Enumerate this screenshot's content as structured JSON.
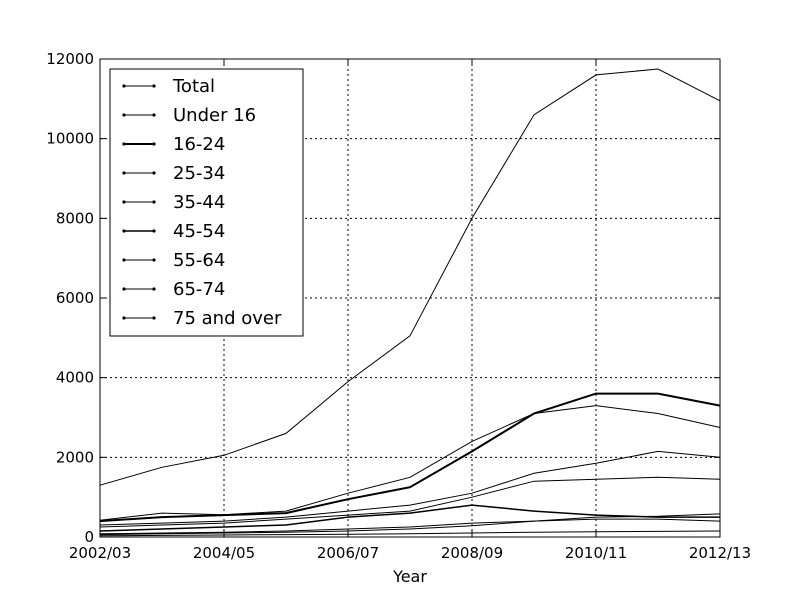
{
  "chart_data": {
    "type": "line",
    "xlabel": "Year",
    "ylabel": "",
    "title": "",
    "x": [
      "2002/03",
      "2003/04",
      "2004/05",
      "2005/06",
      "2006/07",
      "2007/08",
      "2008/09",
      "2009/10",
      "2010/11",
      "2011/12",
      "2012/13"
    ],
    "xticks": [
      "2002/03",
      "2004/05",
      "2006/07",
      "2008/09",
      "2010/11",
      "2012/13"
    ],
    "ylim": [
      0,
      12000
    ],
    "yticks": [
      "0",
      "2000",
      "4000",
      "6000",
      "8000",
      "10000",
      "12000"
    ],
    "grid": true,
    "legend_position": "top-left",
    "series": [
      {
        "name": "Total",
        "width": 1,
        "values": [
          1300,
          1750,
          2050,
          2600,
          3900,
          5050,
          8000,
          10600,
          11600,
          11750,
          10950
        ]
      },
      {
        "name": "Under 16",
        "width": 1,
        "values": [
          420,
          600,
          560,
          650,
          1100,
          1500,
          2400,
          3100,
          3300,
          3100,
          2750
        ]
      },
      {
        "name": "16-24",
        "width": 2,
        "values": [
          400,
          500,
          550,
          600,
          950,
          1250,
          2150,
          3100,
          3600,
          3600,
          3300
        ]
      },
      {
        "name": "25-34",
        "width": 1,
        "values": [
          300,
          350,
          400,
          500,
          650,
          800,
          1100,
          1600,
          1850,
          2150,
          2000
        ]
      },
      {
        "name": "35-44",
        "width": 1,
        "values": [
          250,
          300,
          350,
          450,
          550,
          650,
          1000,
          1400,
          1450,
          1500,
          1450
        ]
      },
      {
        "name": "45-54",
        "width": 1.5,
        "values": [
          150,
          200,
          250,
          300,
          500,
          600,
          800,
          650,
          550,
          500,
          500
        ]
      },
      {
        "name": "55-64",
        "width": 1,
        "values": [
          80,
          100,
          120,
          150,
          200,
          250,
          350,
          400,
          450,
          450,
          400
        ]
      },
      {
        "name": "65-74",
        "width": 1,
        "values": [
          60,
          80,
          100,
          120,
          150,
          200,
          280,
          400,
          500,
          520,
          580
        ]
      },
      {
        "name": "75 and over",
        "width": 1,
        "values": [
          30,
          40,
          50,
          60,
          70,
          80,
          100,
          120,
          130,
          140,
          150
        ]
      }
    ]
  }
}
